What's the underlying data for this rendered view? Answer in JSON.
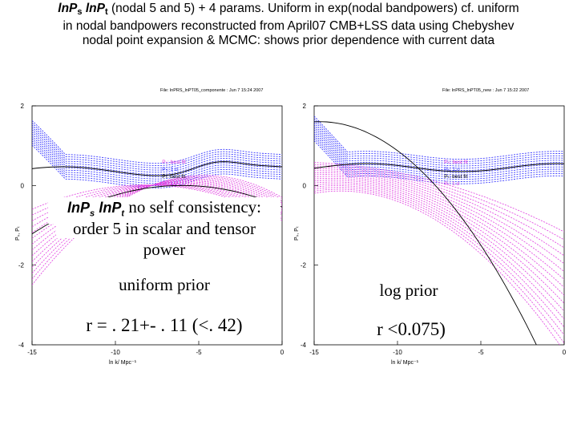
{
  "slide": {
    "title_line1_a": "lnP",
    "title_line1_a_sub": "s",
    "title_line1_b": "lnP",
    "title_line1_b_sub": "t",
    "title_line1_rest": "(nodal 5 and 5) + 4 params. Uniform in exp(nodal bandpowers) cf. uniform",
    "title_line2": "in nodal bandpowers reconstructed from April07 CMB+LSS data using Chebyshev",
    "title_line3": "nodal point expansion & MCMC: shows prior dependence with current data"
  },
  "overlay": {
    "head_a": "lnP",
    "head_a_sub": "s",
    "head_b": "lnP",
    "head_b_sub": "t",
    "head_rest": "no self consistency:",
    "line2": "order 5 in scalar and tensor",
    "line3": "power",
    "left_prior": "uniform prior",
    "left_r": "r = . 21+- . 11 (<. 42)",
    "right_prior": "log prior",
    "right_r": "r <0.075)"
  },
  "chart_data": [
    {
      "type": "line",
      "file_label": "File: lnPRS_lnPT05_componente : Jun  7 15:24 2007",
      "xlabel": "ln k/ Mpc⁻¹",
      "ylabel": "Pₛ, Pₜ",
      "xlim": [
        -15,
        0
      ],
      "ylim": [
        -4,
        2
      ],
      "x_ticks": [
        "-15",
        "-10",
        "-5",
        "0"
      ],
      "y_ticks": [
        "2",
        "0",
        "-2",
        "-4"
      ],
      "legend_position": "top-right inside plot",
      "legend": [
        "Pₛ: best fit",
        "Pₛ: 1 σ",
        "Pₜ: best fit",
        "Pₜ: 1 σ"
      ],
      "colors": {
        "scalar": "#3a3aff",
        "tensor": "#e040e0",
        "best_fit": "#000000"
      },
      "prior": "uniform prior",
      "r_constraint": "r = .21+-.11 (<.42)"
    },
    {
      "type": "line",
      "file_label": "File: lnPRS_lnPT05_new : Jun  7 15:22 2007",
      "xlabel": "ln k/ Mpc⁻¹",
      "ylabel": "Pₛ, Pₜ",
      "xlim": [
        -15,
        0
      ],
      "ylim": [
        -4,
        2
      ],
      "x_ticks": [
        "-15",
        "-10",
        "-5",
        "0"
      ],
      "y_ticks": [
        "2",
        "0",
        "-2",
        "-4"
      ],
      "legend_position": "top-right inside plot",
      "legend": [
        "Pₛ: best fit",
        "Pₛ: 1 σ",
        "Pₜ: best fit",
        "Pₜ: 1 σ"
      ],
      "colors": {
        "scalar": "#3a3aff",
        "tensor": "#e040e0",
        "best_fit": "#000000"
      },
      "prior": "log prior",
      "r_constraint": "r <0.075)"
    }
  ]
}
